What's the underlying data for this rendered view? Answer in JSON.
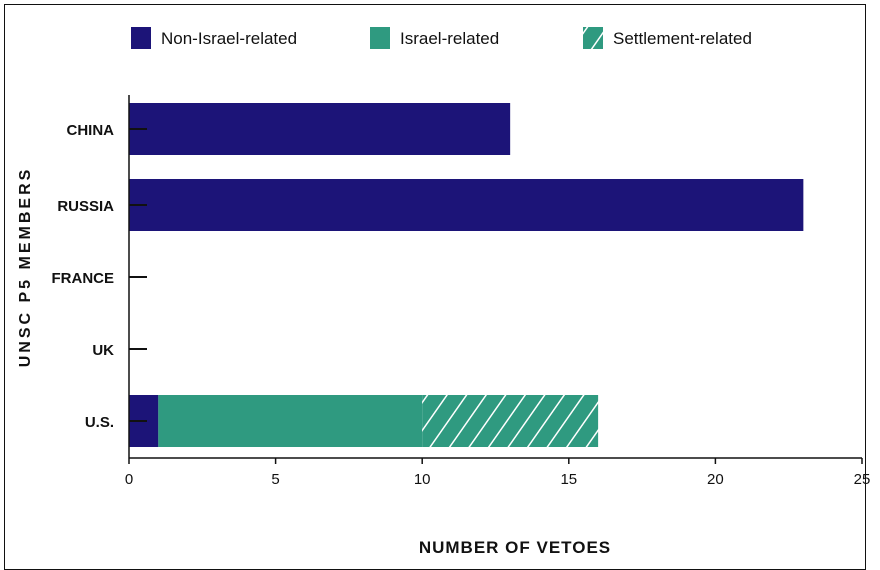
{
  "chart_data": {
    "type": "bar",
    "orientation": "horizontal",
    "stacked": true,
    "categories": [
      "CHINA",
      "RUSSIA",
      "FRANCE",
      "UK",
      "U.S."
    ],
    "series": [
      {
        "name": "Non-Israel-related",
        "values": [
          13,
          23,
          0,
          0,
          1
        ],
        "color": "#1c1478",
        "pattern": "solid"
      },
      {
        "name": "Israel-related",
        "values": [
          0,
          0,
          0,
          0,
          9
        ],
        "color": "#2f9a80",
        "pattern": "solid"
      },
      {
        "name": "Settlement-related",
        "values": [
          0,
          0,
          0,
          0,
          6
        ],
        "color": "#2f9a80",
        "pattern": "hatched"
      }
    ],
    "xlabel": "NUMBER OF VETOES",
    "ylabel": "UNSC P5 MEMBERS",
    "xlim": [
      0,
      25
    ],
    "xticks": [
      "0",
      "5",
      "10",
      "15",
      "20",
      "25"
    ],
    "grid": false,
    "legend_position": "top"
  }
}
